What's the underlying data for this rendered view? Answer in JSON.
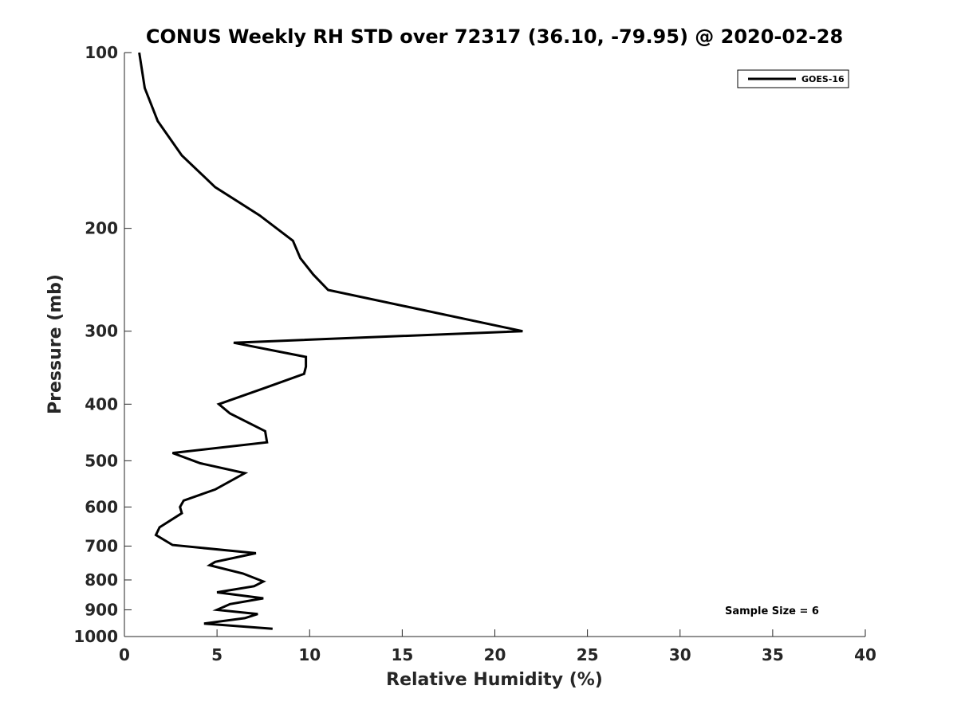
{
  "chart_data": {
    "type": "line",
    "title": "CONUS Weekly RH STD over 72317 (36.10, -79.95) @ 2020-02-28",
    "xlabel": "Relative Humidity (%)",
    "ylabel": "Pressure (mb)",
    "xlim": [
      0,
      40
    ],
    "ylim": [
      100,
      1000
    ],
    "y_scale": "log",
    "y_reversed": true,
    "x_ticks": [
      "0",
      "5",
      "10",
      "15",
      "20",
      "25",
      "30",
      "35",
      "40"
    ],
    "y_ticks": [
      "100",
      "200",
      "300",
      "400",
      "500",
      "600",
      "700",
      "800",
      "900",
      "1000"
    ],
    "grid": false,
    "legend_position": "top-right",
    "annotation": "Sample Size = 6",
    "series": [
      {
        "name": "GOES-16",
        "color": "#000000",
        "x": [
          0.8,
          1.1,
          1.8,
          3.1,
          4.9,
          7.3,
          9.1,
          9.5,
          10.2,
          11.0,
          21.5,
          5.9,
          9.8,
          9.8,
          9.7,
          7.6,
          5.1,
          5.7,
          7.6,
          7.7,
          2.6,
          4.1,
          6.5,
          4.9,
          3.2,
          3.0,
          3.1,
          1.9,
          1.7,
          2.6,
          7.1,
          4.9,
          4.6,
          6.4,
          7.5,
          7.0,
          5.0,
          7.5,
          5.7,
          5.0,
          7.2,
          6.5,
          4.3,
          8.0
        ],
        "y": [
          100,
          115,
          131,
          150,
          170,
          190,
          210,
          225,
          240,
          255,
          300,
          314,
          332,
          345,
          355,
          375,
          400,
          415,
          445,
          465,
          485,
          505,
          525,
          560,
          585,
          600,
          615,
          650,
          670,
          697,
          720,
          745,
          755,
          780,
          805,
          820,
          840,
          860,
          880,
          900,
          915,
          930,
          950,
          970
        ]
      }
    ]
  }
}
